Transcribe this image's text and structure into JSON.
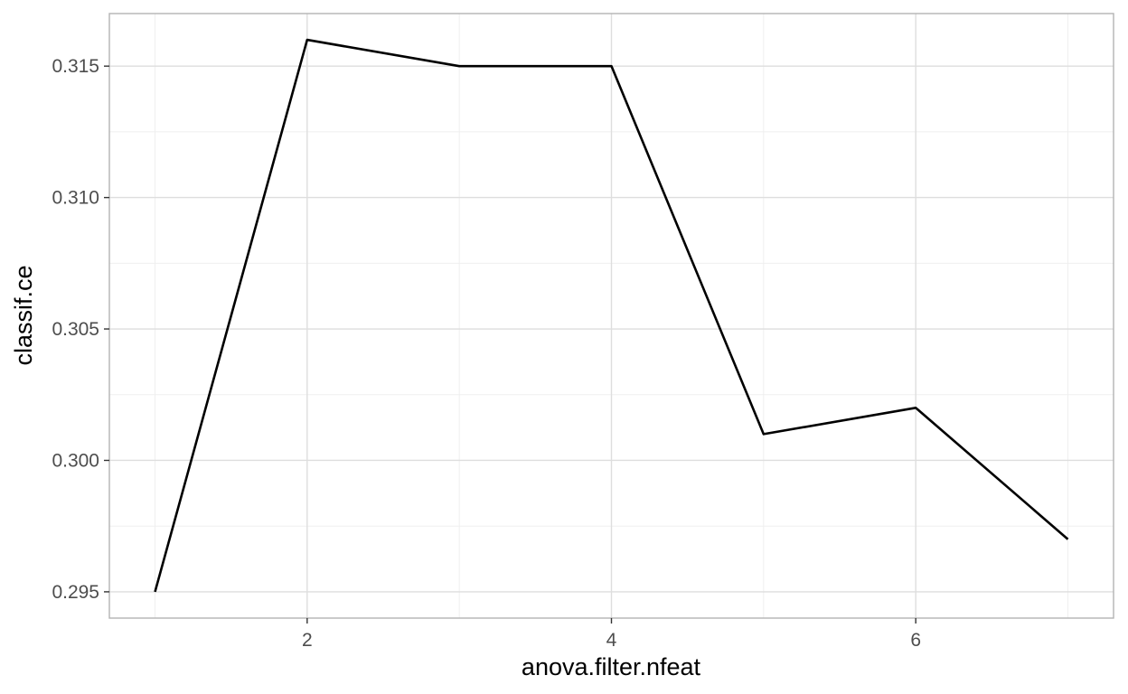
{
  "chart_data": {
    "type": "line",
    "title": "",
    "xlabel": "anova.filter.nfeat",
    "ylabel": "classif.ce",
    "x": [
      1,
      2,
      3,
      4,
      5,
      6,
      7
    ],
    "series": [
      {
        "values": [
          0.295,
          0.316,
          0.315,
          0.315,
          0.301,
          0.302,
          0.297
        ]
      }
    ],
    "xlim": [
      0.7,
      7.3
    ],
    "ylim": [
      0.294,
      0.317
    ],
    "x_major_ticks": [
      2,
      4,
      6
    ],
    "x_minor_ticks": [
      1,
      3,
      5,
      7
    ],
    "x_tick_labels": [
      "2",
      "4",
      "6"
    ],
    "y_major_ticks": [
      0.295,
      0.3,
      0.305,
      0.31,
      0.315
    ],
    "y_minor_ticks": [
      0.2975,
      0.3025,
      0.3075,
      0.3125
    ],
    "y_tick_labels": [
      "0.295",
      "0.300",
      "0.305",
      "0.310",
      "0.315"
    ],
    "grid": true,
    "legend": "none",
    "colors": {
      "line": "#000000",
      "grid_major": "#dedede",
      "grid_minor": "#efefef",
      "panel_border": "#b3b3b3",
      "tick": "#333333"
    }
  }
}
